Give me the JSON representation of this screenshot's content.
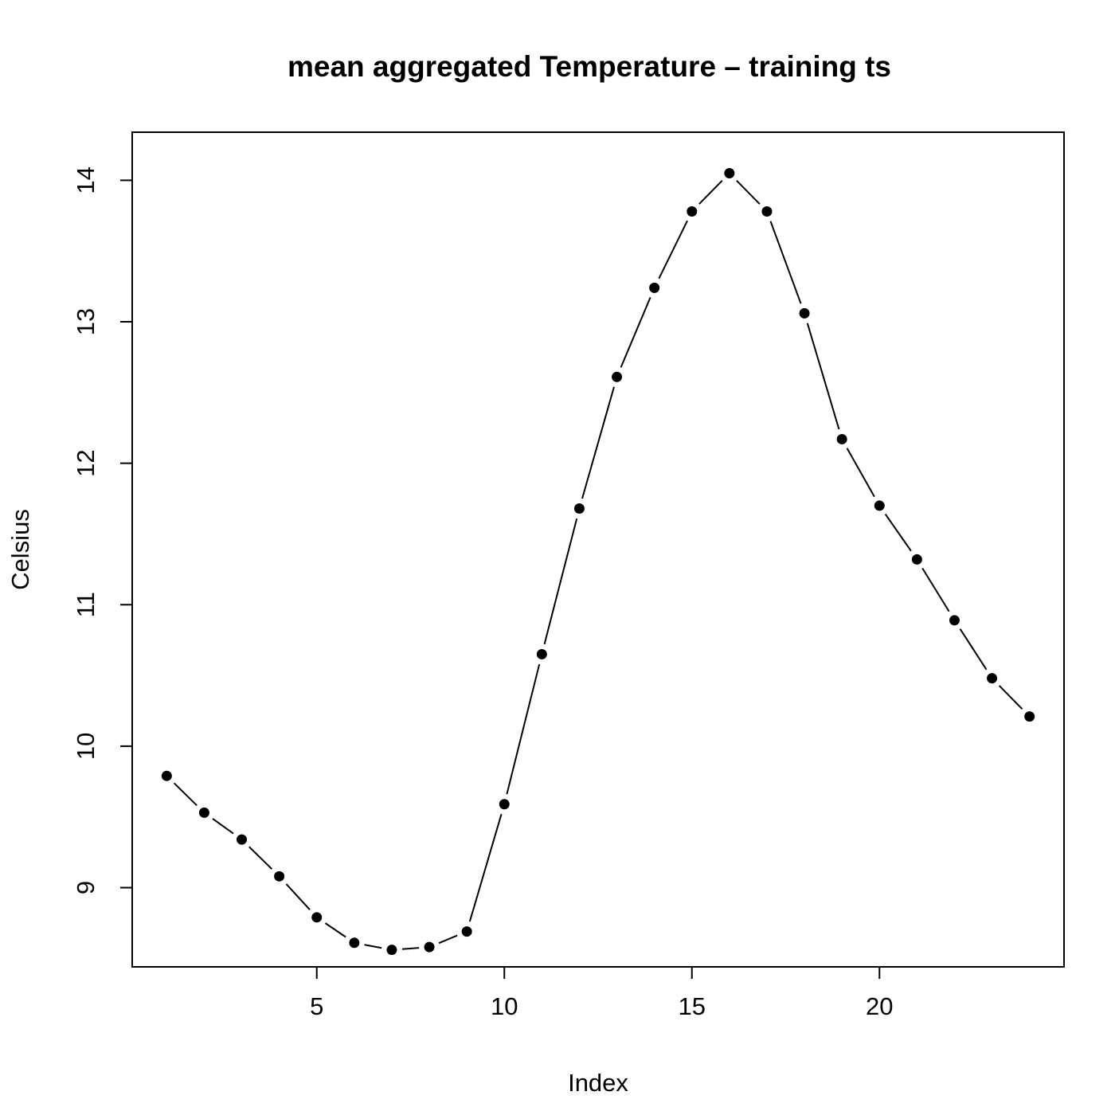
{
  "chart_data": {
    "type": "line",
    "title": "mean aggregated Temperature – training ts",
    "xlabel": "Index",
    "ylabel": "Celsius",
    "x": [
      1,
      2,
      3,
      4,
      5,
      6,
      7,
      8,
      9,
      10,
      11,
      12,
      13,
      14,
      15,
      16,
      17,
      18,
      19,
      20,
      21,
      22,
      23,
      24
    ],
    "values": [
      9.79,
      9.53,
      9.34,
      9.08,
      8.79,
      8.61,
      8.56,
      8.58,
      8.69,
      9.59,
      10.65,
      11.68,
      12.61,
      13.24,
      13.78,
      14.05,
      13.78,
      13.06,
      12.17,
      11.7,
      11.32,
      10.89,
      10.48,
      10.21
    ],
    "xlim": [
      0.08,
      24.92
    ],
    "ylim": [
      8.44,
      14.34
    ],
    "xticks": [
      5,
      10,
      15,
      20
    ],
    "yticks": [
      9,
      10,
      11,
      12,
      13,
      14
    ],
    "grid": false,
    "line_style": "dashed-variable",
    "marker": "filled-circle",
    "colors": {
      "line": "#000000",
      "marker": "#000000",
      "frame": "#000000"
    }
  }
}
